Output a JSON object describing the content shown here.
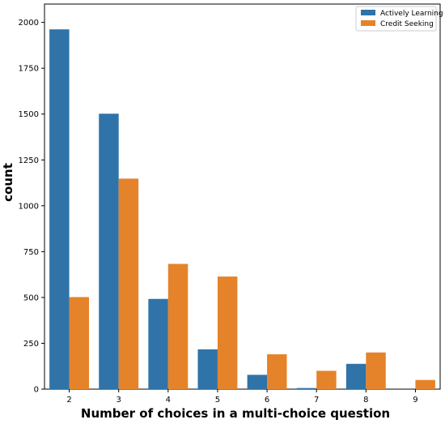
{
  "chart_data": {
    "type": "bar",
    "title": "",
    "xlabel": "Number of choices in a multi-choice question",
    "ylabel": "count",
    "categories": [
      "2",
      "3",
      "4",
      "5",
      "6",
      "7",
      "8",
      "9"
    ],
    "series": [
      {
        "name": "Actively Learning",
        "color": "#2f73a8",
        "values": [
          1962,
          1502,
          492,
          217,
          78,
          6,
          138,
          0
        ]
      },
      {
        "name": "Credit Seeking",
        "color": "#e5832a",
        "values": [
          502,
          1148,
          683,
          614,
          190,
          100,
          200,
          50
        ]
      }
    ],
    "ylim": [
      0,
      2100
    ],
    "yticks": [
      0,
      250,
      500,
      750,
      1000,
      1250,
      1500,
      1750,
      2000
    ],
    "ytick_labels": [
      "0",
      "250",
      "500",
      "750",
      "1000",
      "1250",
      "1500",
      "1750",
      "2000"
    ],
    "grid": false,
    "legend_position": "top-right"
  }
}
